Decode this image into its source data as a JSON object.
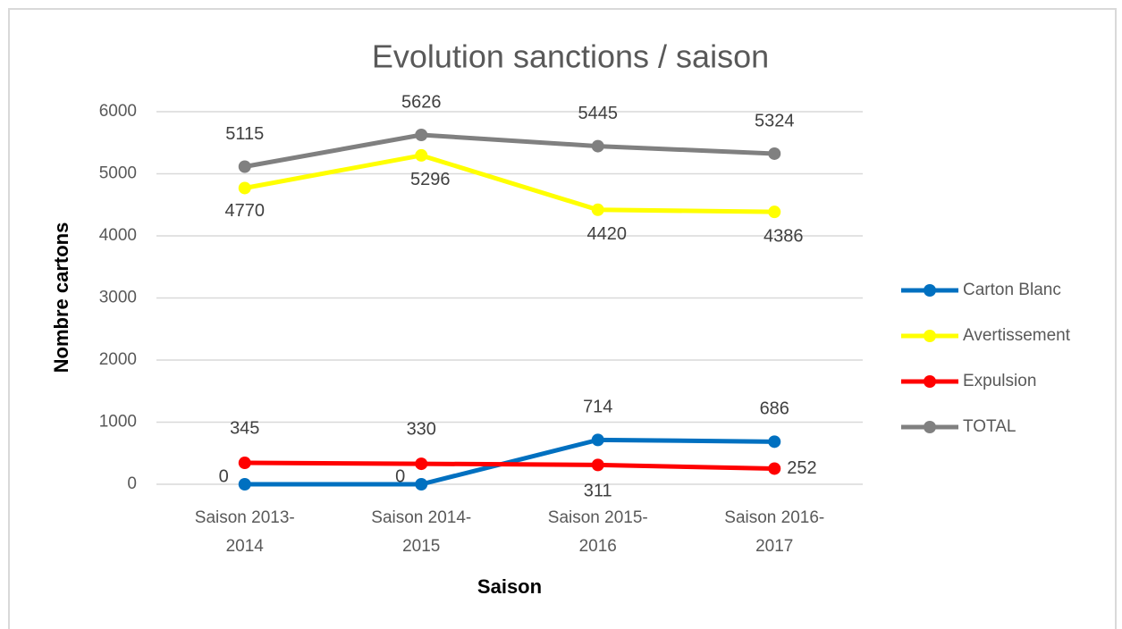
{
  "chart_data": {
    "type": "line",
    "title": "Evolution sanctions / saison",
    "xlabel": "Saison",
    "ylabel": "Nombre cartons",
    "categories": [
      "Saison 2013-2014",
      "Saison 2014-2015",
      "Saison 2015-2016",
      "Saison 2016-2017"
    ],
    "series": [
      {
        "name": "Carton Blanc",
        "color": "#0070c0",
        "values": [
          0,
          0,
          714,
          686
        ]
      },
      {
        "name": "Avertissement",
        "color": "#ffff00",
        "values": [
          4770,
          5296,
          4420,
          4386
        ]
      },
      {
        "name": "Expulsion",
        "color": "#ff0000",
        "values": [
          345,
          330,
          311,
          252
        ]
      },
      {
        "name": "TOTAL",
        "color": "#808080",
        "values": [
          5115,
          5626,
          5445,
          5324
        ]
      }
    ],
    "ylim": [
      0,
      6000
    ],
    "yticks": [
      0,
      1000,
      2000,
      3000,
      4000,
      5000,
      6000
    ],
    "grid": true,
    "legend": "right"
  }
}
